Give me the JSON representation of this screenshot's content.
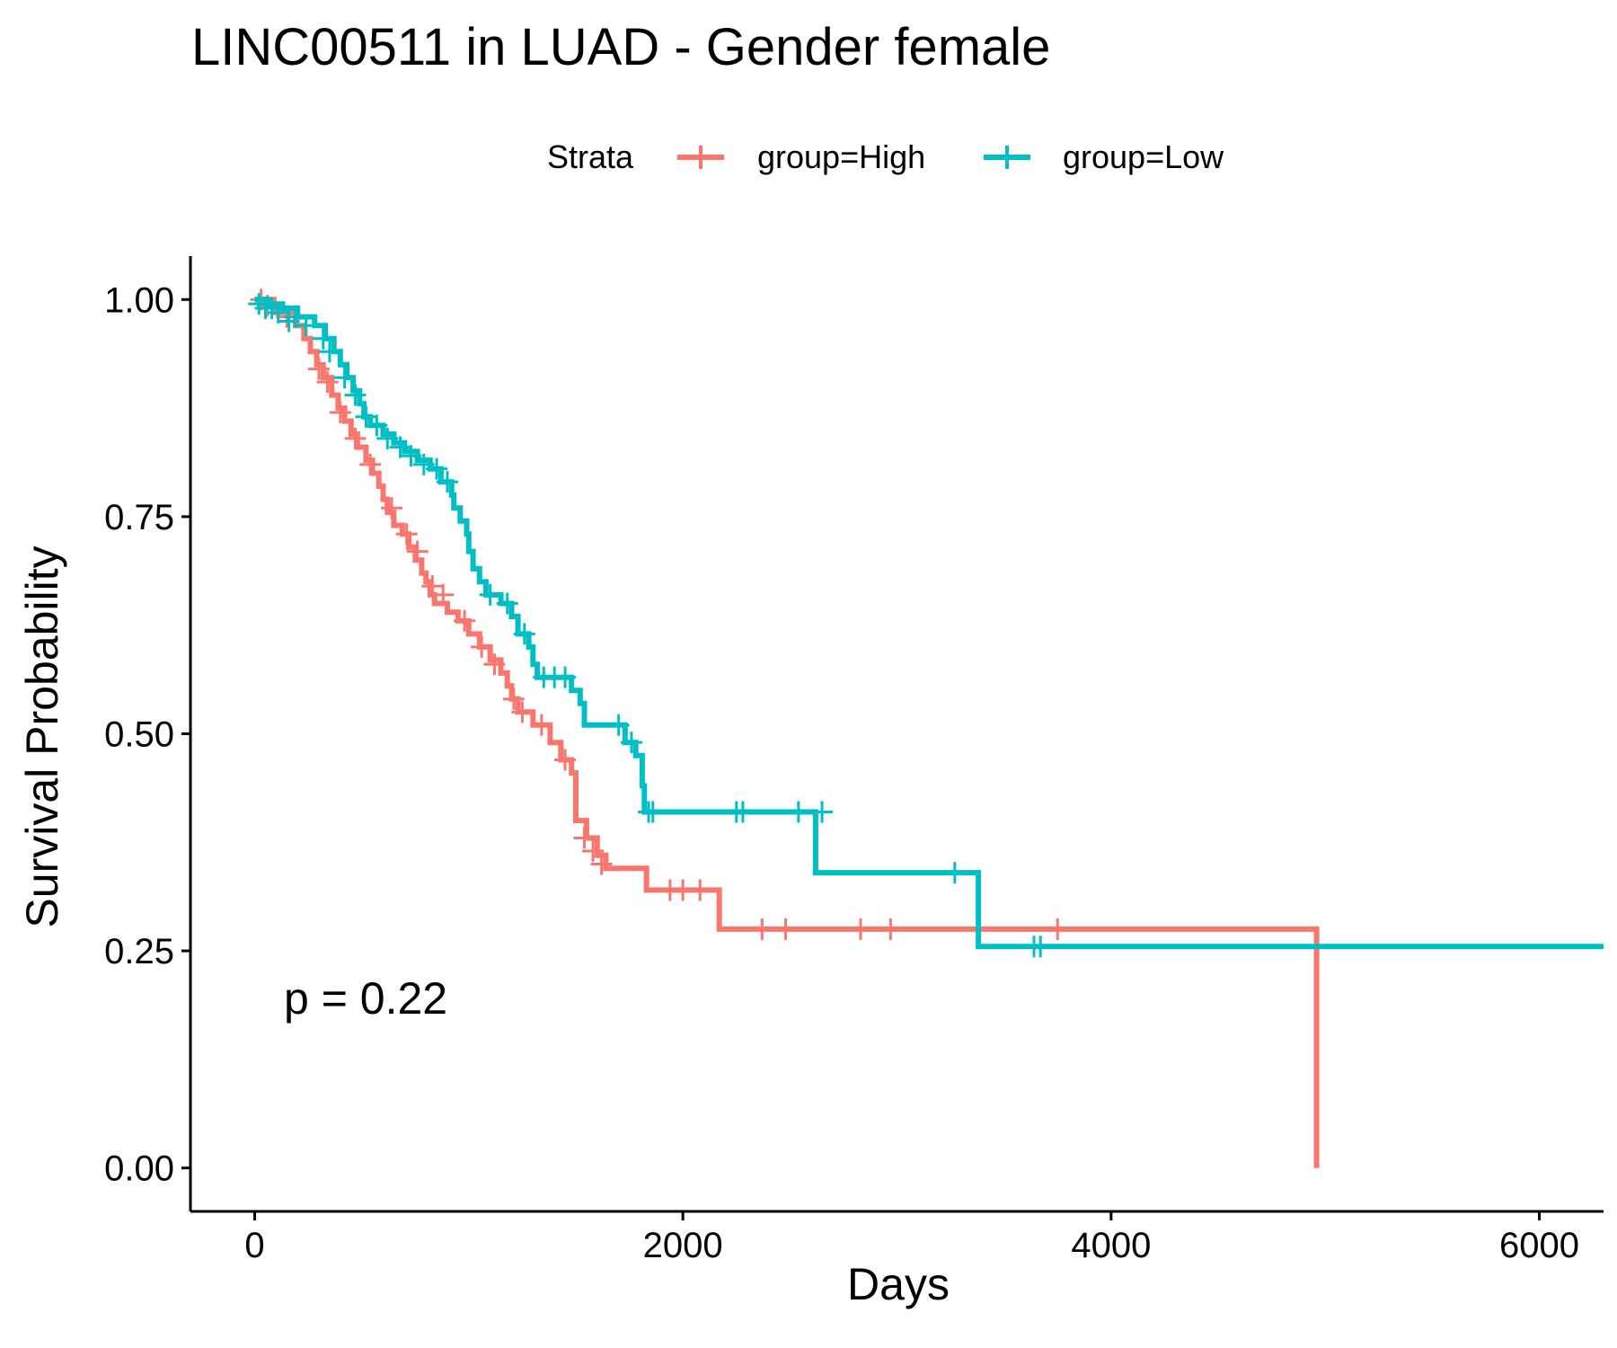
{
  "chart_data": {
    "type": "line",
    "title": "LINC00511 in LUAD - Gender female",
    "xlabel": "Days",
    "ylabel": "Survival Probability",
    "xlim": [
      -300,
      6300
    ],
    "ylim": [
      -0.05,
      1.05
    ],
    "x_ticks": [
      0,
      2000,
      4000,
      6000
    ],
    "x_tick_labels": [
      "0",
      "2000",
      "4000",
      "6000"
    ],
    "y_ticks": [
      0,
      0.25,
      0.5,
      0.75,
      1.0
    ],
    "y_tick_labels": [
      "0.00",
      "0.25",
      "0.50",
      "0.75",
      "1.00"
    ],
    "grid": false,
    "legend": {
      "title": "Strata",
      "position": "top",
      "entries": [
        "group=High",
        "group=Low"
      ]
    },
    "annotation": "p = 0.22",
    "series": [
      {
        "name": "group=High",
        "color": "#F8766D",
        "steps": [
          [
            0,
            1.0
          ],
          [
            90,
            0.985
          ],
          [
            190,
            0.97
          ],
          [
            230,
            0.955
          ],
          [
            260,
            0.94
          ],
          [
            290,
            0.925
          ],
          [
            320,
            0.91
          ],
          [
            360,
            0.89
          ],
          [
            390,
            0.875
          ],
          [
            420,
            0.86
          ],
          [
            450,
            0.845
          ],
          [
            480,
            0.83
          ],
          [
            520,
            0.815
          ],
          [
            550,
            0.8
          ],
          [
            580,
            0.785
          ],
          [
            600,
            0.77
          ],
          [
            620,
            0.755
          ],
          [
            650,
            0.74
          ],
          [
            690,
            0.73
          ],
          [
            720,
            0.715
          ],
          [
            750,
            0.7
          ],
          [
            780,
            0.685
          ],
          [
            800,
            0.675
          ],
          [
            820,
            0.66
          ],
          [
            840,
            0.65
          ],
          [
            900,
            0.64
          ],
          [
            950,
            0.63
          ],
          [
            1000,
            0.615
          ],
          [
            1050,
            0.6
          ],
          [
            1100,
            0.585
          ],
          [
            1150,
            0.57
          ],
          [
            1180,
            0.555
          ],
          [
            1200,
            0.54
          ],
          [
            1230,
            0.525
          ],
          [
            1300,
            0.51
          ],
          [
            1380,
            0.49
          ],
          [
            1430,
            0.47
          ],
          [
            1480,
            0.455
          ],
          [
            1500,
            0.4
          ],
          [
            1550,
            0.38
          ],
          [
            1600,
            0.36
          ],
          [
            1640,
            0.345
          ],
          [
            1830,
            0.32
          ],
          [
            2170,
            0.275
          ],
          [
            4960,
            0.275
          ],
          [
            4960,
            0.0
          ]
        ],
        "censor": [
          [
            30,
            1.0
          ],
          [
            60,
            0.993
          ],
          [
            150,
            0.98
          ],
          [
            300,
            0.92
          ],
          [
            340,
            0.905
          ],
          [
            400,
            0.87
          ],
          [
            470,
            0.84
          ],
          [
            540,
            0.81
          ],
          [
            640,
            0.76
          ],
          [
            710,
            0.73
          ],
          [
            760,
            0.71
          ],
          [
            830,
            0.67
          ],
          [
            880,
            0.66
          ],
          [
            980,
            0.63
          ],
          [
            1060,
            0.6
          ],
          [
            1120,
            0.58
          ],
          [
            1210,
            0.54
          ],
          [
            1250,
            0.525
          ],
          [
            1340,
            0.51
          ],
          [
            1450,
            0.47
          ],
          [
            1540,
            0.38
          ],
          [
            1580,
            0.365
          ],
          [
            1620,
            0.35
          ],
          [
            1940,
            0.32
          ],
          [
            2000,
            0.32
          ],
          [
            2080,
            0.32
          ],
          [
            2370,
            0.275
          ],
          [
            2480,
            0.275
          ],
          [
            2830,
            0.275
          ],
          [
            2970,
            0.275
          ],
          [
            3750,
            0.275
          ]
        ]
      },
      {
        "name": "group=Low",
        "color": "#00BFC4",
        "steps": [
          [
            0,
            1.0
          ],
          [
            60,
            0.995
          ],
          [
            130,
            0.99
          ],
          [
            200,
            0.98
          ],
          [
            280,
            0.97
          ],
          [
            330,
            0.955
          ],
          [
            370,
            0.94
          ],
          [
            400,
            0.925
          ],
          [
            430,
            0.91
          ],
          [
            460,
            0.895
          ],
          [
            490,
            0.88
          ],
          [
            510,
            0.865
          ],
          [
            540,
            0.855
          ],
          [
            600,
            0.845
          ],
          [
            650,
            0.835
          ],
          [
            700,
            0.825
          ],
          [
            760,
            0.815
          ],
          [
            820,
            0.805
          ],
          [
            870,
            0.79
          ],
          [
            920,
            0.775
          ],
          [
            930,
            0.76
          ],
          [
            960,
            0.745
          ],
          [
            990,
            0.73
          ],
          [
            1000,
            0.71
          ],
          [
            1020,
            0.69
          ],
          [
            1050,
            0.675
          ],
          [
            1080,
            0.66
          ],
          [
            1150,
            0.65
          ],
          [
            1200,
            0.635
          ],
          [
            1230,
            0.615
          ],
          [
            1280,
            0.6
          ],
          [
            1300,
            0.58
          ],
          [
            1320,
            0.565
          ],
          [
            1480,
            0.55
          ],
          [
            1520,
            0.535
          ],
          [
            1540,
            0.51
          ],
          [
            1700,
            0.51
          ],
          [
            1730,
            0.49
          ],
          [
            1780,
            0.475
          ],
          [
            1810,
            0.44
          ],
          [
            1820,
            0.41
          ],
          [
            2610,
            0.41
          ],
          [
            2620,
            0.34
          ],
          [
            3370,
            0.34
          ],
          [
            3380,
            0.255
          ],
          [
            6300,
            0.255
          ]
        ],
        "censor": [
          [
            20,
            0.995
          ],
          [
            50,
            0.99
          ],
          [
            80,
            0.99
          ],
          [
            110,
            0.985
          ],
          [
            160,
            0.975
          ],
          [
            190,
            0.98
          ],
          [
            240,
            0.97
          ],
          [
            320,
            0.955
          ],
          [
            350,
            0.94
          ],
          [
            420,
            0.91
          ],
          [
            470,
            0.89
          ],
          [
            520,
            0.865
          ],
          [
            570,
            0.855
          ],
          [
            620,
            0.84
          ],
          [
            680,
            0.83
          ],
          [
            730,
            0.82
          ],
          [
            790,
            0.81
          ],
          [
            850,
            0.805
          ],
          [
            900,
            0.79
          ],
          [
            1100,
            0.66
          ],
          [
            1180,
            0.65
          ],
          [
            1260,
            0.615
          ],
          [
            1350,
            0.565
          ],
          [
            1400,
            0.565
          ],
          [
            1450,
            0.565
          ],
          [
            1700,
            0.51
          ],
          [
            1760,
            0.49
          ],
          [
            1840,
            0.41
          ],
          [
            1860,
            0.41
          ],
          [
            2250,
            0.41
          ],
          [
            2280,
            0.41
          ],
          [
            2540,
            0.41
          ],
          [
            2650,
            0.41
          ],
          [
            3270,
            0.34
          ],
          [
            3640,
            0.255
          ],
          [
            3670,
            0.255
          ]
        ]
      }
    ]
  }
}
